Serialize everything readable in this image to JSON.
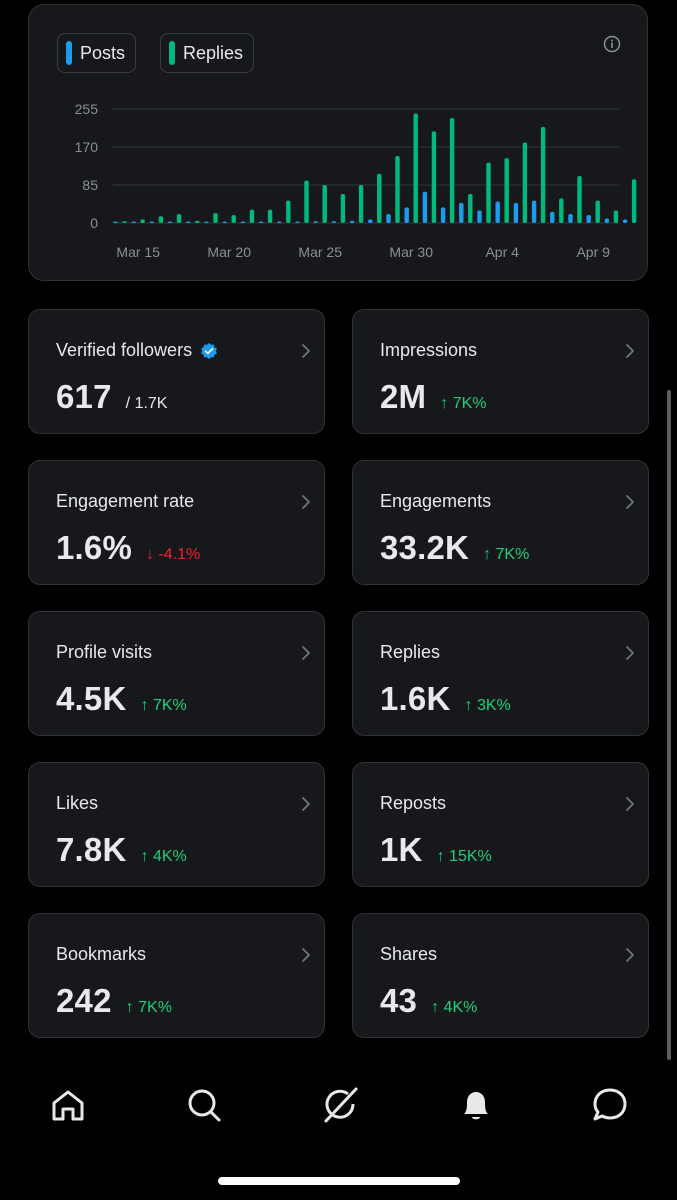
{
  "chart_data": {
    "type": "bar",
    "x_tick_labels": [
      "Mar 15",
      "Mar 20",
      "Mar 25",
      "Mar 30",
      "Apr 4",
      "Apr 9"
    ],
    "y_ticks": [
      0,
      85,
      170,
      255
    ],
    "ylim": [
      0,
      255
    ],
    "grid": true,
    "categories": [
      "Mar 14",
      "Mar 15",
      "Mar 16",
      "Mar 17",
      "Mar 18",
      "Mar 19",
      "Mar 20",
      "Mar 21",
      "Mar 22",
      "Mar 23",
      "Mar 24",
      "Mar 25",
      "Mar 26",
      "Mar 27",
      "Mar 28",
      "Mar 29",
      "Mar 30",
      "Mar 31",
      "Apr 1",
      "Apr 2",
      "Apr 3",
      "Apr 4",
      "Apr 5",
      "Apr 6",
      "Apr 7",
      "Apr 8",
      "Apr 9",
      "Apr 10",
      "Apr 11"
    ],
    "series": [
      {
        "name": "Posts",
        "color": "#1d9bf0",
        "values": [
          2,
          2,
          2,
          3,
          2,
          2,
          2,
          3,
          2,
          3,
          3,
          4,
          4,
          5,
          8,
          20,
          35,
          70,
          35,
          45,
          28,
          48,
          45,
          50,
          25,
          20,
          18,
          10,
          8
        ]
      },
      {
        "name": "Replies",
        "color": "#00ba7c",
        "values": [
          4,
          8,
          15,
          20,
          5,
          22,
          18,
          30,
          30,
          50,
          95,
          85,
          65,
          85,
          110,
          150,
          245,
          205,
          235,
          65,
          135,
          145,
          180,
          215,
          55,
          105,
          50,
          28,
          98
        ]
      }
    ]
  },
  "legend": {
    "posts_label": "Posts",
    "replies_label": "Replies"
  },
  "stats": [
    {
      "label": "Verified followers",
      "value": "617",
      "sub": "/ 1.7K",
      "verified": true
    },
    {
      "label": "Impressions",
      "value": "2M",
      "change": "↑ 7K%",
      "direction": "up"
    },
    {
      "label": "Engagement rate",
      "value": "1.6%",
      "change": "↓ -4.1%",
      "direction": "down"
    },
    {
      "label": "Engagements",
      "value": "33.2K",
      "change": "↑ 7K%",
      "direction": "up"
    },
    {
      "label": "Profile visits",
      "value": "4.5K",
      "change": "↑ 7K%",
      "direction": "up"
    },
    {
      "label": "Replies",
      "value": "1.6K",
      "change": "↑ 3K%",
      "direction": "up"
    },
    {
      "label": "Likes",
      "value": "7.8K",
      "change": "↑ 4K%",
      "direction": "up"
    },
    {
      "label": "Reposts",
      "value": "1K",
      "change": "↑ 15K%",
      "direction": "up"
    },
    {
      "label": "Bookmarks",
      "value": "242",
      "change": "↑ 7K%",
      "direction": "up"
    },
    {
      "label": "Shares",
      "value": "43",
      "change": "↑ 4K%",
      "direction": "up"
    }
  ],
  "colors": {
    "up": "#1ed07a",
    "down": "#f4212e",
    "verified": "#1d9bf0"
  },
  "tabs": [
    {
      "icon": "home-icon"
    },
    {
      "icon": "search-icon"
    },
    {
      "icon": "grok-icon"
    },
    {
      "icon": "bell-icon"
    },
    {
      "icon": "messages-icon"
    }
  ]
}
